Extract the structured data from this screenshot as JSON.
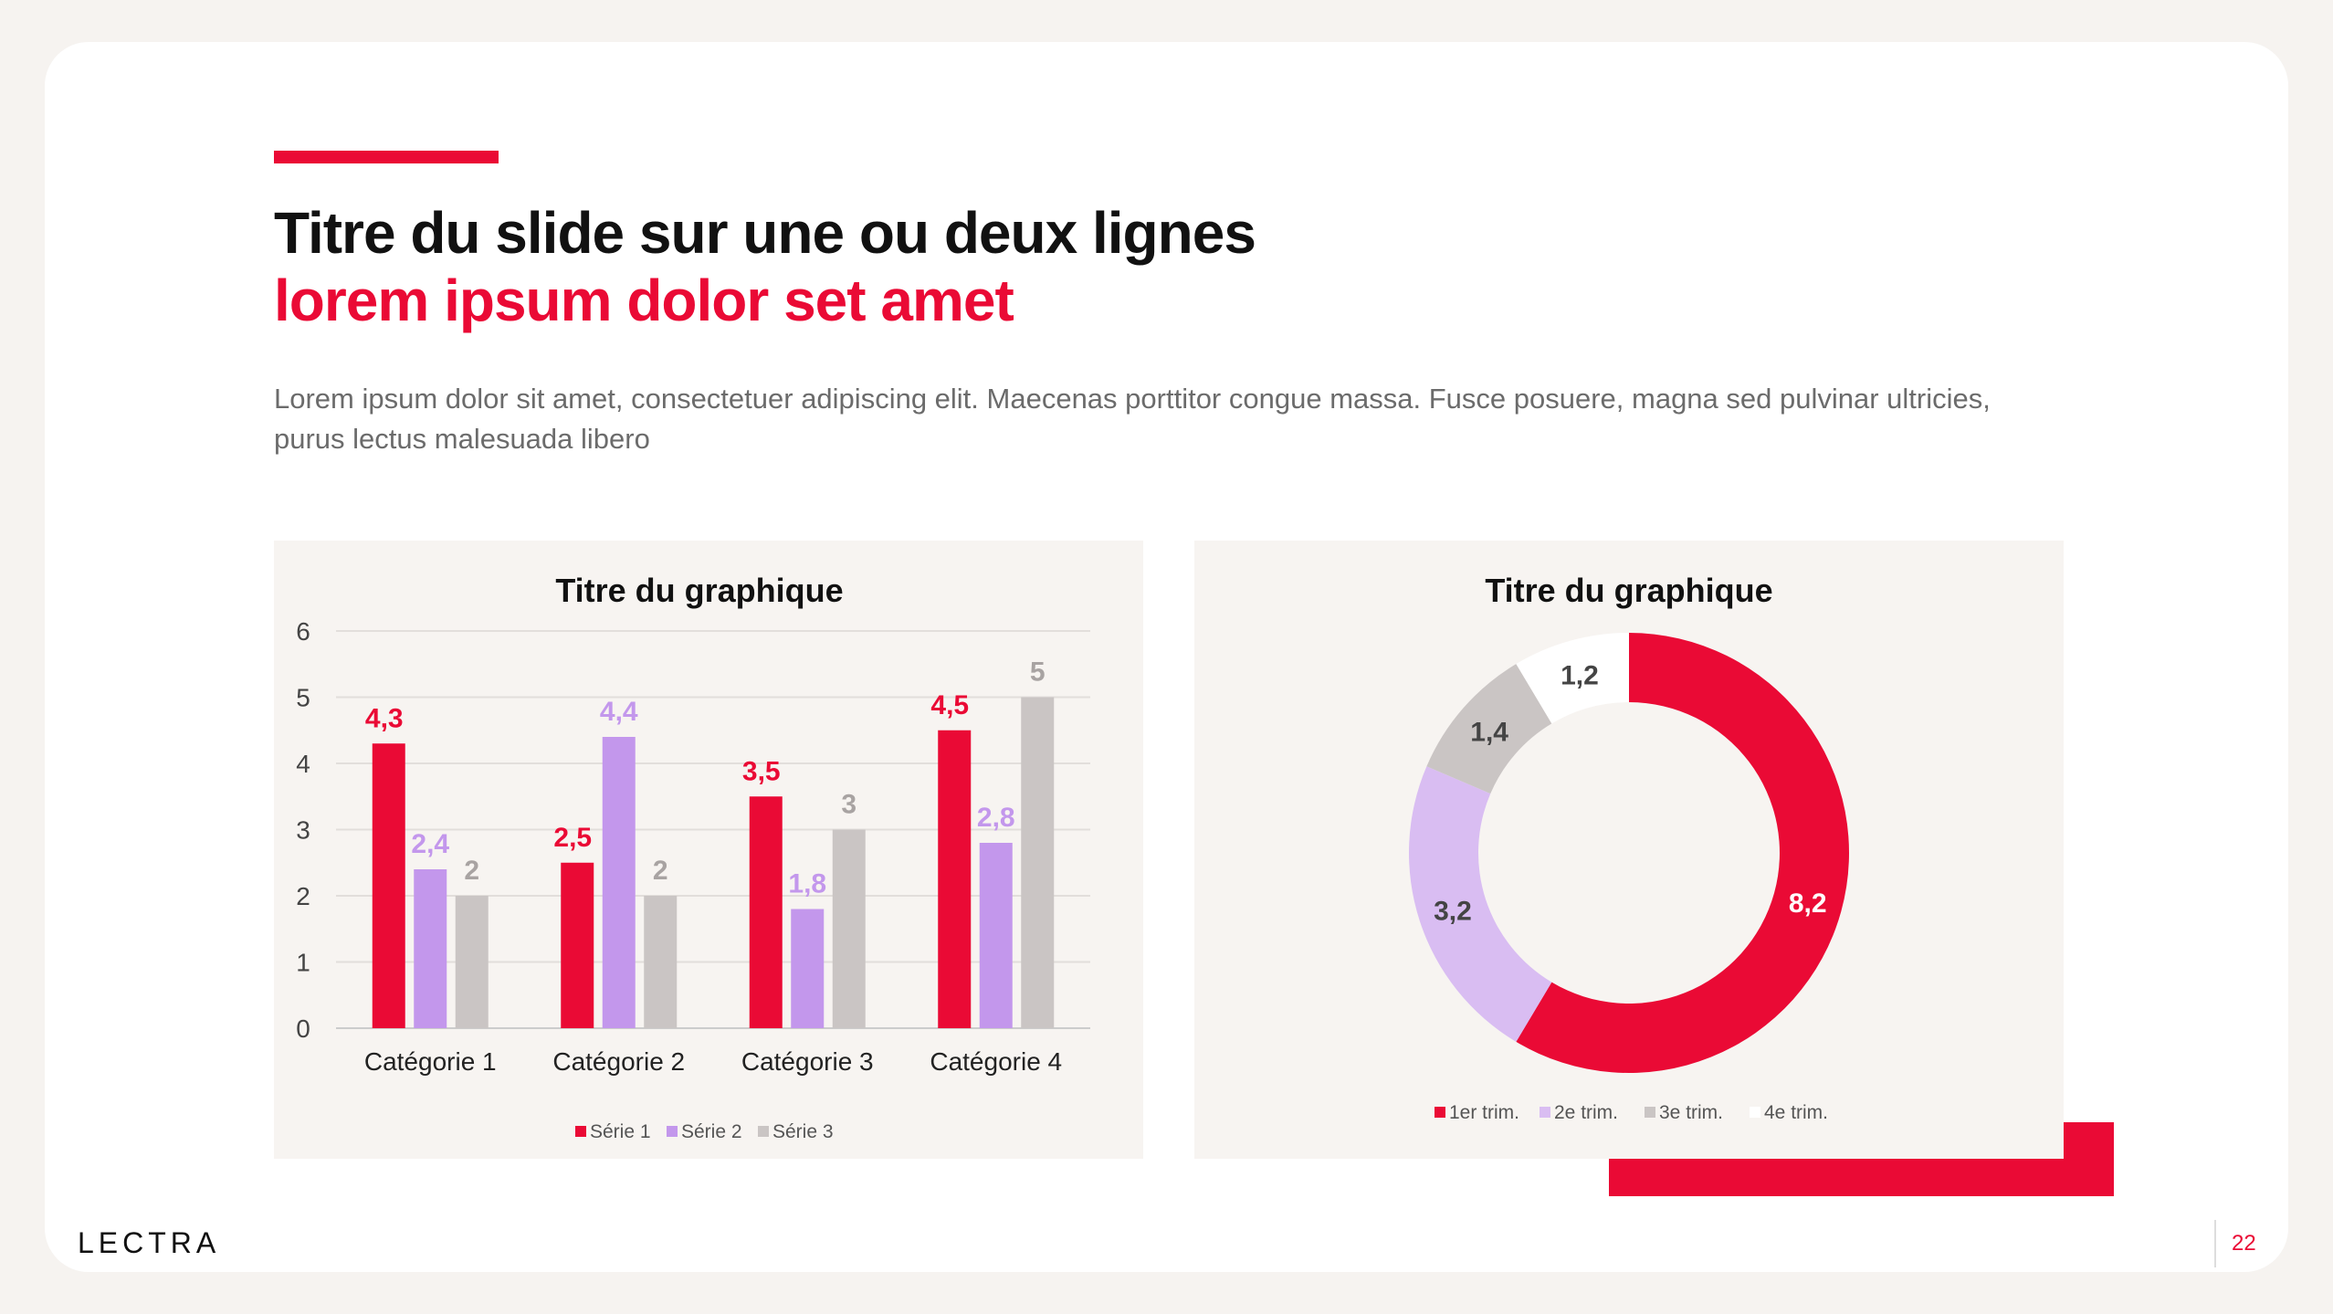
{
  "slide": {
    "title_line1": "Titre du slide sur une ou deux lignes",
    "title_line2": "lorem ipsum dolor set amet",
    "paragraph": "Lorem ipsum dolor sit amet, consectetuer adipiscing elit. Maecenas porttitor congue massa. Fusce posuere, magna sed pulvinar ultricies, purus lectus malesuada libero",
    "logo": "LECTRA",
    "page_number": "22"
  },
  "colors": {
    "accent": "#ea0a35",
    "serie2": "#c397ec",
    "serie3": "#cac5c4",
    "trim2": "#d9bdf2",
    "trim4": "#ffffff"
  },
  "chart_data": [
    {
      "type": "bar",
      "title": "Titre du graphique",
      "categories": [
        "Catégorie 1",
        "Catégorie 2",
        "Catégorie 3",
        "Catégorie 4"
      ],
      "series": [
        {
          "name": "Série 1",
          "values": [
            4.3,
            2.5,
            3.5,
            4.5
          ],
          "labels": [
            "4,3",
            "2,5",
            "3,5",
            "4,5"
          ],
          "color": "#ea0a35"
        },
        {
          "name": "Série 2",
          "values": [
            2.4,
            4.4,
            1.8,
            2.8
          ],
          "labels": [
            "2,4",
            "4,4",
            "1,8",
            "2,8"
          ],
          "color": "#c397ec"
        },
        {
          "name": "Série 3",
          "values": [
            2,
            2,
            3,
            5
          ],
          "labels": [
            "2",
            "2",
            "3",
            "5"
          ],
          "color": "#cac5c4"
        }
      ],
      "yticks": [
        "0",
        "1",
        "2",
        "3",
        "4",
        "5",
        "6"
      ],
      "ylim": [
        0,
        6
      ],
      "grid": true,
      "legend": "bottom"
    },
    {
      "type": "pie",
      "title": "Titre du graphique",
      "donut": true,
      "labels": [
        "1er trim.",
        "2e trim.",
        "3e trim.",
        "4e trim."
      ],
      "values": [
        8.2,
        3.2,
        1.4,
        1.2
      ],
      "value_labels": [
        "8,2",
        "3,2",
        "1,4",
        "1,2"
      ],
      "colors": [
        "#ea0a35",
        "#d9bdf2",
        "#cac5c4",
        "#ffffff"
      ],
      "legend": "bottom"
    }
  ]
}
